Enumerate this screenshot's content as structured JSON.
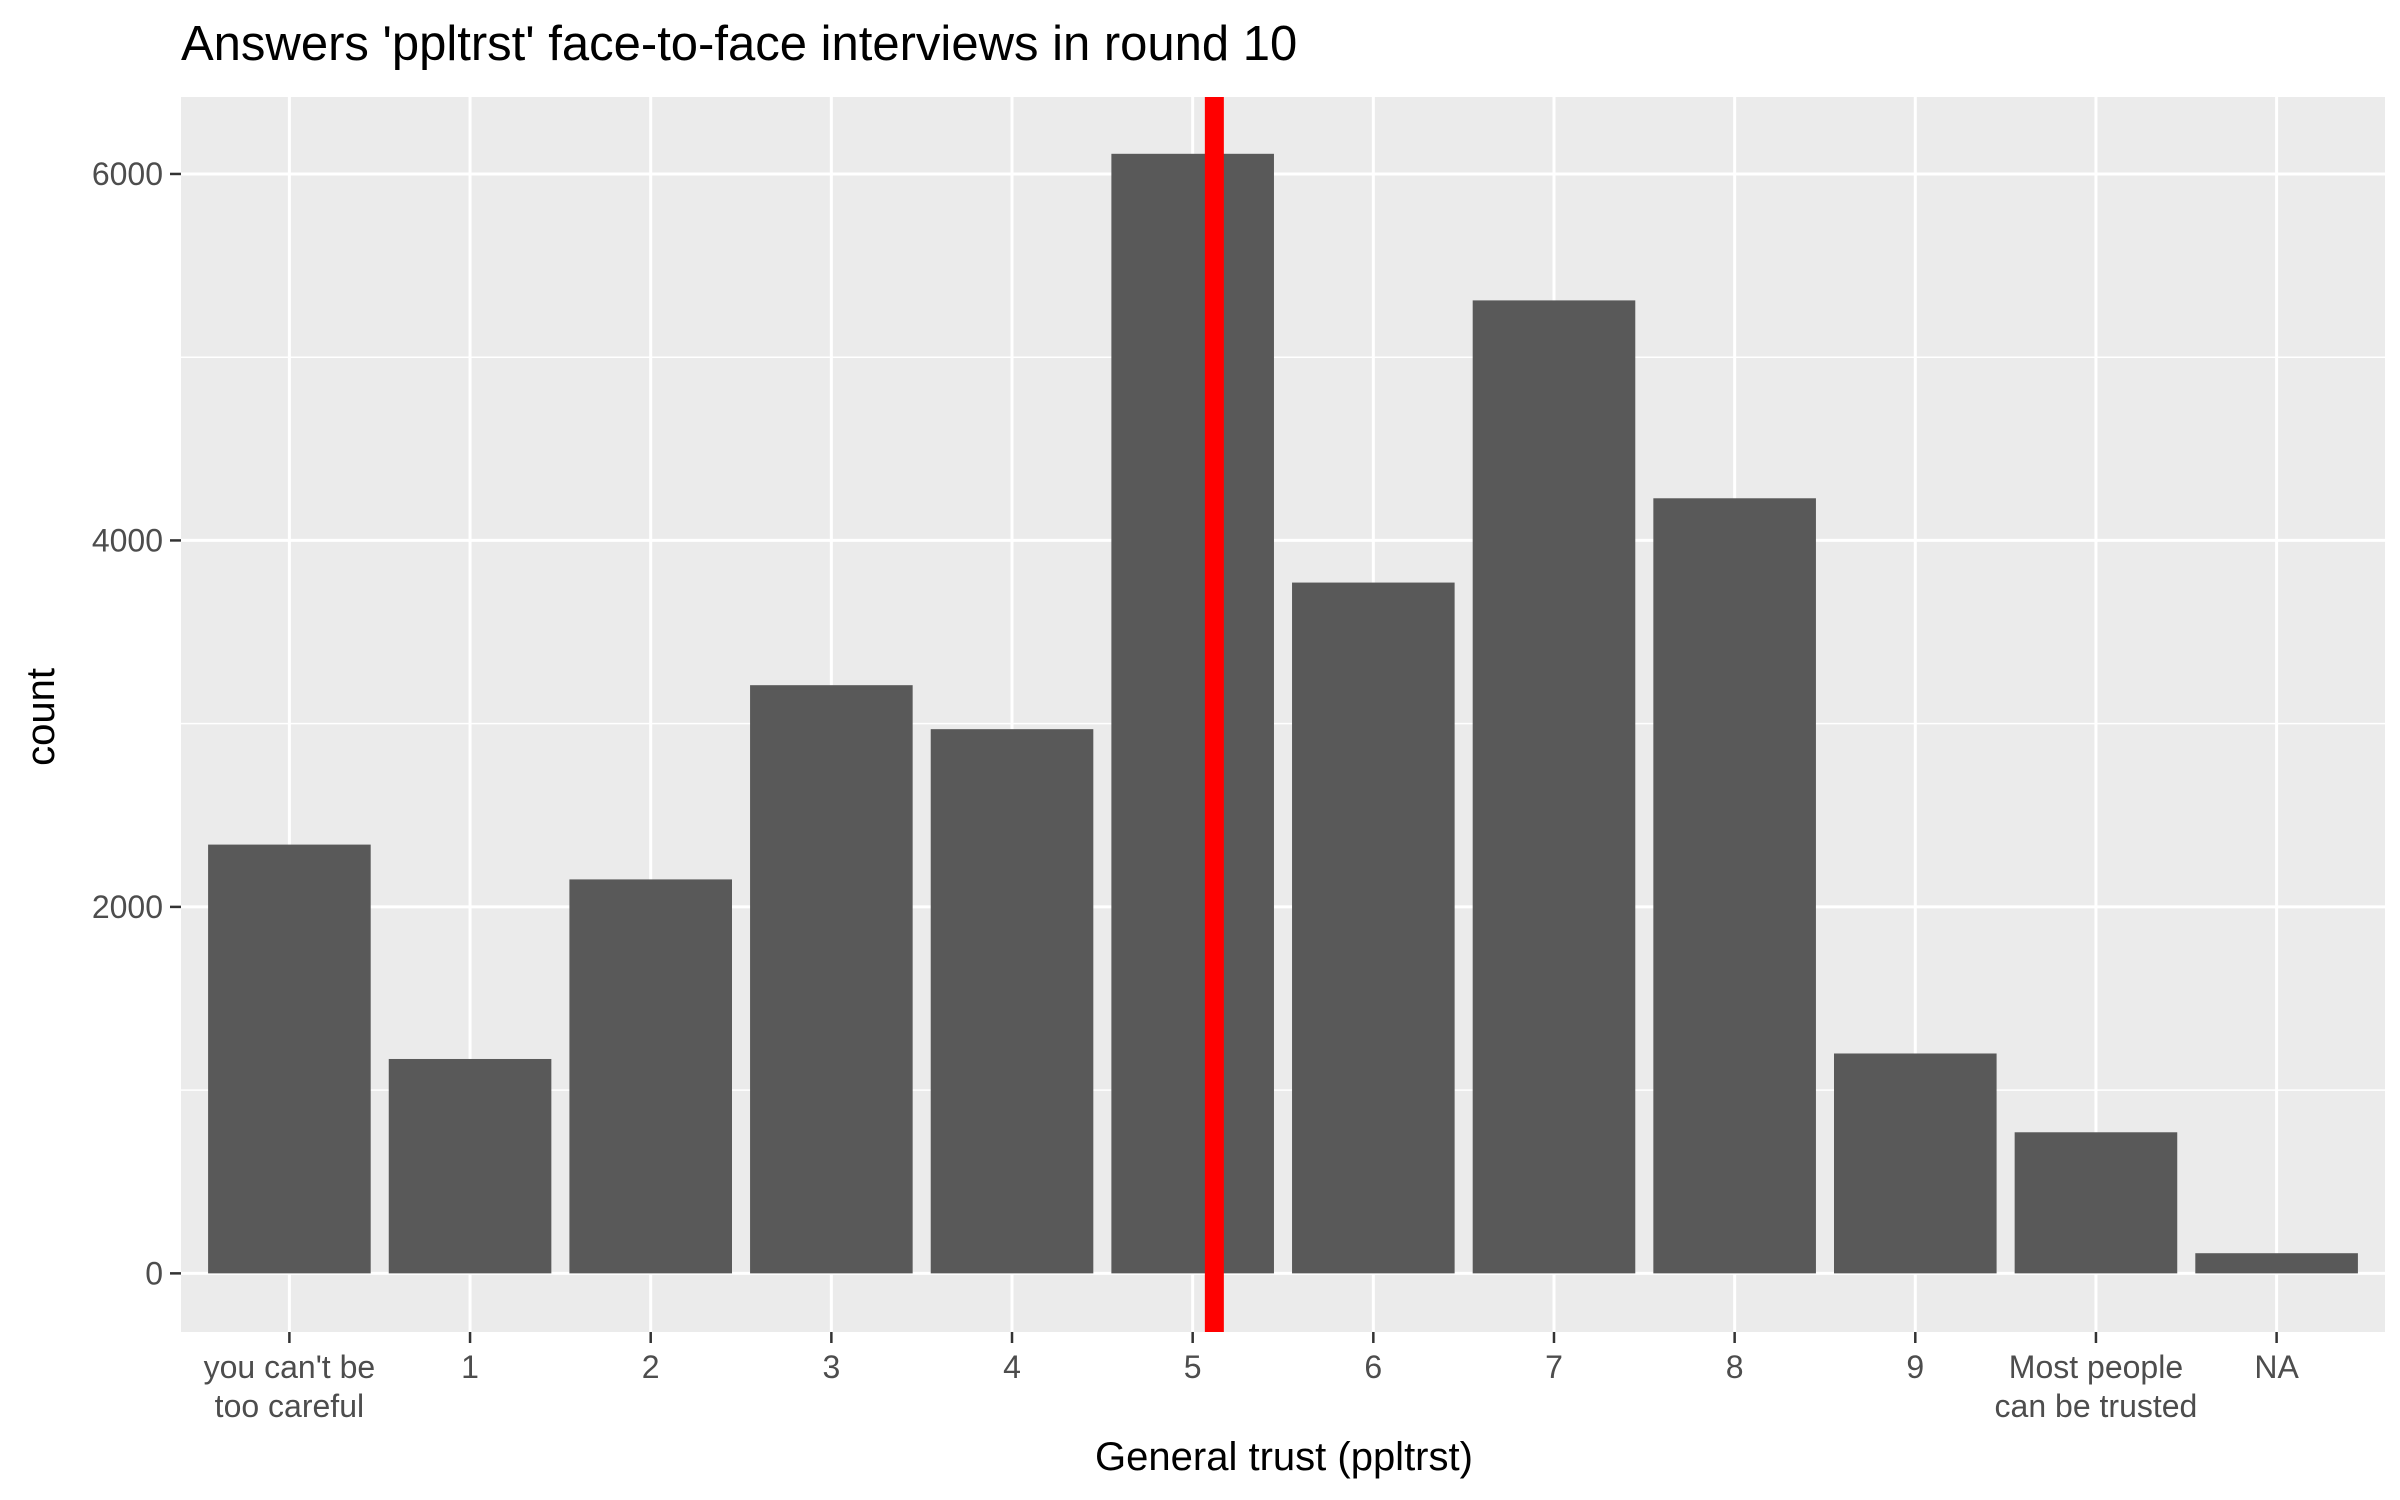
{
  "chart_data": {
    "type": "bar",
    "title": "Answers 'ppltrst' face-to-face interviews in round 10",
    "xlabel": "General trust (ppltrst)",
    "ylabel": "count",
    "categories": [
      [
        "you can't be",
        "too careful"
      ],
      [
        "1"
      ],
      [
        "2"
      ],
      [
        "3"
      ],
      [
        "4"
      ],
      [
        "5"
      ],
      [
        "6"
      ],
      [
        "7"
      ],
      [
        "8"
      ],
      [
        "9"
      ],
      [
        "Most people",
        "can be trusted"
      ],
      [
        "NA"
      ]
    ],
    "values": [
      2340,
      1170,
      2150,
      3210,
      2970,
      6110,
      3770,
      5310,
      4230,
      1200,
      770,
      110
    ],
    "yticks": [
      0,
      2000,
      4000,
      6000
    ],
    "ylim": [
      -320,
      6420
    ],
    "grid": true,
    "reference_line": {
      "x": 5.12,
      "color": "#ff0000"
    },
    "colors": {
      "bar": "#595959",
      "panel": "#ebebeb",
      "grid": "#ffffff",
      "reference": "#ff0000"
    }
  }
}
